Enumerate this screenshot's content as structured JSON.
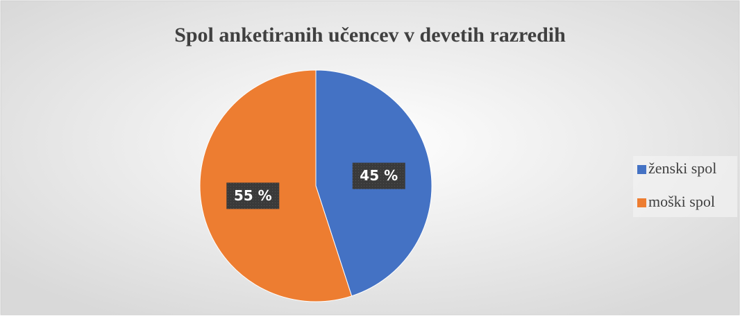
{
  "chart_data": {
    "type": "pie",
    "title": "Spol anketiranih učencev v devetih razredih",
    "categories": [
      "ženski spol",
      "moški spol"
    ],
    "values": [
      45,
      55
    ],
    "value_labels": [
      "45 %",
      "55 %"
    ],
    "colors": [
      "#4472c4",
      "#ed7d31"
    ],
    "legend": "right"
  }
}
